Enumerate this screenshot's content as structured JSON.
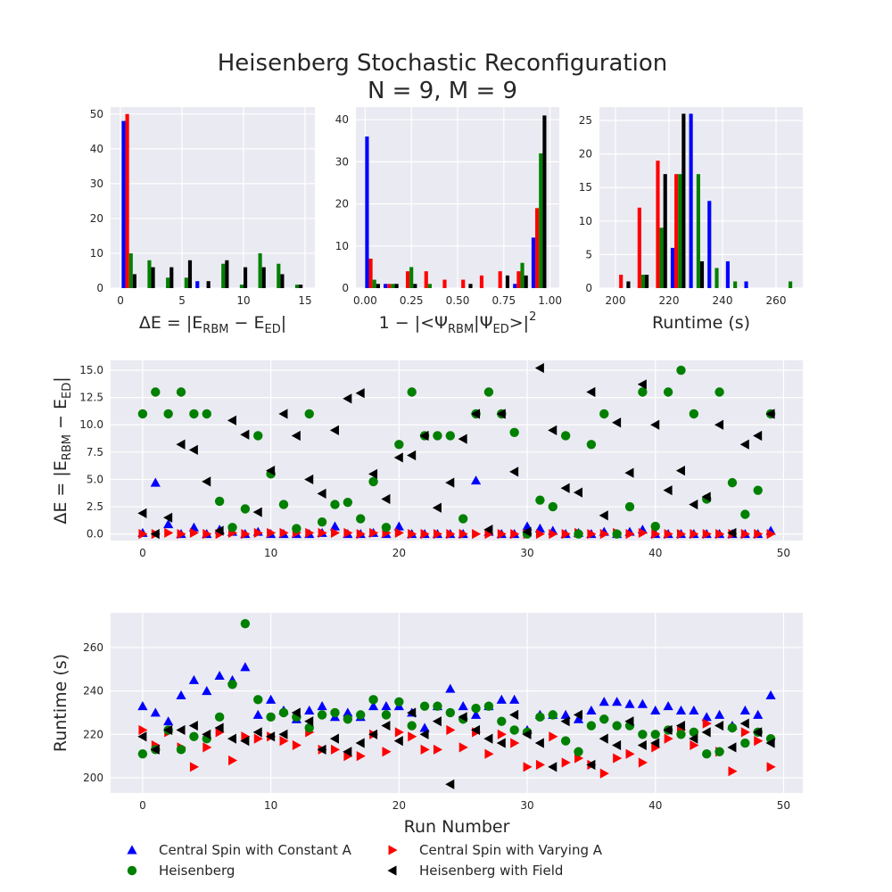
{
  "figure": {
    "title_line1": "Heisenberg Stochastic Reconfiguration",
    "title_line2": "N = 9, M = 9"
  },
  "legend": {
    "entries": [
      {
        "label": "Central Spin with Constant A",
        "color": "#0000ff",
        "marker": "triangle-up"
      },
      {
        "label": "Central Spin with Varying A",
        "color": "#ff0000",
        "marker": "triangle-right"
      },
      {
        "label": "Heisenberg",
        "color": "#008000",
        "marker": "circle"
      },
      {
        "label": "Heisenberg with Field",
        "color": "#000000",
        "marker": "triangle-left"
      }
    ]
  },
  "chart_data": [
    {
      "type": "bar",
      "xlabel": "ΔE = |E_RBM − E_ED|",
      "ylabel": "",
      "xlim": [
        -0.8,
        15.8
      ],
      "ylim": [
        0,
        52
      ],
      "xticks": [
        0,
        5,
        10,
        15
      ],
      "yticks": [
        0,
        10,
        20,
        30,
        40,
        50
      ],
      "bin_start": 0.1,
      "bin_width": 1.5,
      "series": [
        {
          "name": "Central Spin with Constant A",
          "color": "#0000ff",
          "values": [
            48,
            0,
            0,
            0,
            2,
            0,
            0,
            0,
            0,
            0
          ]
        },
        {
          "name": "Central Spin with Varying A",
          "color": "#ff0000",
          "values": [
            50,
            0,
            0,
            0,
            0,
            0,
            0,
            0,
            0,
            0
          ]
        },
        {
          "name": "Heisenberg",
          "color": "#008000",
          "values": [
            10,
            8,
            3,
            3,
            0,
            7,
            1,
            10,
            7,
            1
          ]
        },
        {
          "name": "Heisenberg with Field",
          "color": "#000000",
          "values": [
            4,
            6,
            6,
            8,
            2,
            8,
            6,
            6,
            4,
            1
          ]
        }
      ]
    },
    {
      "type": "bar",
      "xlabel": "1 − |<Ψ_RBM|Ψ_ED>|²",
      "ylabel": "",
      "xlim": [
        -0.05,
        1.05
      ],
      "ylim": [
        0,
        43
      ],
      "xticks": [
        "0.00",
        "0.25",
        "0.50",
        "0.75",
        "1.00"
      ],
      "yticks": [
        0,
        10,
        20,
        30,
        40
      ],
      "bin_start": 0.0,
      "bin_width": 0.1,
      "series": [
        {
          "name": "Central Spin with Constant A",
          "color": "#0000ff",
          "values": [
            36,
            1,
            0,
            0,
            0,
            0,
            0,
            0,
            1,
            12
          ]
        },
        {
          "name": "Central Spin with Varying A",
          "color": "#ff0000",
          "values": [
            7,
            1,
            4,
            4,
            2,
            2,
            3,
            4,
            4,
            19
          ]
        },
        {
          "name": "Heisenberg",
          "color": "#008000",
          "values": [
            2,
            1,
            5,
            1,
            0,
            0,
            0,
            0,
            6,
            32
          ]
        },
        {
          "name": "Heisenberg with Field",
          "color": "#000000",
          "values": [
            1,
            1,
            1,
            0,
            0,
            1,
            0,
            3,
            3,
            41
          ]
        }
      ]
    },
    {
      "type": "bar",
      "xlabel": "Runtime (s)",
      "ylabel": "",
      "xlim": [
        194,
        270
      ],
      "ylim": [
        0,
        27
      ],
      "xticks": [
        200,
        220,
        240,
        260
      ],
      "yticks": [
        0,
        5,
        10,
        15,
        20,
        25
      ],
      "bin_start": 200,
      "bin_width": 6.88,
      "series": [
        {
          "name": "Central Spin with Constant A",
          "color": "#0000ff",
          "values": [
            0,
            0,
            0,
            6,
            26,
            13,
            4,
            1,
            0,
            0
          ]
        },
        {
          "name": "Central Spin with Varying A",
          "color": "#ff0000",
          "values": [
            2,
            12,
            19,
            17,
            0,
            0,
            0,
            0,
            0,
            0
          ]
        },
        {
          "name": "Heisenberg",
          "color": "#008000",
          "values": [
            0,
            2,
            9,
            17,
            17,
            3,
            1,
            0,
            0,
            1
          ]
        },
        {
          "name": "Heisenberg with Field",
          "color": "#000000",
          "values": [
            1,
            2,
            17,
            26,
            4,
            0,
            0,
            0,
            0,
            0
          ]
        }
      ]
    },
    {
      "type": "scatter",
      "xlabel": "",
      "ylabel": "ΔE = |E_RBM − E_ED|",
      "xlim": [
        -2.5,
        51.5
      ],
      "ylim": [
        -0.6,
        15.9
      ],
      "xticks": [
        0,
        10,
        20,
        30,
        40,
        50
      ],
      "yticks": [
        "0.0",
        "2.5",
        "5.0",
        "7.5",
        "10.0",
        "12.5",
        "15.0"
      ],
      "series": [
        {
          "name": "Central Spin with Constant A",
          "color": "#0000ff",
          "marker": "triangle-up",
          "y": [
            0.1,
            4.7,
            0.9,
            0,
            0.6,
            0,
            0.4,
            0.2,
            0,
            0.2,
            0,
            0,
            0,
            0,
            0.1,
            0.7,
            0,
            0,
            0.1,
            0,
            0.7,
            0,
            0,
            0,
            0,
            0,
            4.9,
            0.2,
            0,
            0,
            0.7,
            0.5,
            0.3,
            0,
            0.1,
            0,
            0.2,
            0,
            0.2,
            0.4,
            0,
            0,
            0,
            0,
            0,
            0,
            0,
            0,
            0,
            0.3
          ]
        },
        {
          "name": "Central Spin with Varying A",
          "color": "#ff0000",
          "marker": "triangle-right",
          "y": [
            0,
            0,
            0.1,
            0,
            0.1,
            0,
            0,
            0.1,
            0,
            0.1,
            0.1,
            0.1,
            0.1,
            0.1,
            0.1,
            0.1,
            0.1,
            0,
            0.1,
            0.1,
            0.1,
            0,
            0,
            0,
            0,
            0,
            0,
            0,
            0,
            0,
            0,
            0,
            0,
            0,
            0.1,
            0,
            0,
            0.1,
            0,
            0.1,
            0,
            0,
            0,
            0,
            0,
            0,
            0,
            0,
            0,
            0
          ]
        },
        {
          "name": "Heisenberg",
          "color": "#008000",
          "marker": "circle",
          "y": [
            11,
            13,
            11,
            13,
            11,
            11,
            3,
            0.6,
            2.3,
            9,
            5.5,
            2.7,
            0.5,
            11,
            1.1,
            2.7,
            2.9,
            1.4,
            4.8,
            0.6,
            8.2,
            13,
            9,
            9,
            9,
            1.4,
            11,
            13,
            11,
            9.3,
            0,
            3.1,
            2.5,
            9,
            0,
            8.2,
            11,
            0,
            2.5,
            13,
            0.7,
            13,
            15,
            11,
            3.2,
            13,
            4.7,
            1.8,
            4,
            11
          ]
        },
        {
          "name": "Heisenberg with Field",
          "color": "#000000",
          "marker": "triangle-left",
          "y": [
            1.9,
            0,
            1.5,
            8.2,
            7.7,
            4.8,
            0.3,
            10.4,
            9.1,
            2,
            5.8,
            11,
            9,
            5,
            3.7,
            9.5,
            12.4,
            12.9,
            5.5,
            3.2,
            7,
            7.2,
            9,
            2.4,
            4.7,
            8.7,
            11,
            0.4,
            11,
            5.7,
            0.2,
            15.2,
            9.5,
            4.2,
            3.8,
            13,
            1.7,
            10.2,
            5.6,
            13.7,
            10,
            4,
            5.8,
            2.7,
            3.4,
            10,
            0.1,
            8.2,
            9,
            11
          ]
        }
      ]
    },
    {
      "type": "scatter",
      "xlabel": "Run Number",
      "ylabel": "Runtime (s)",
      "xlim": [
        -2.5,
        51.5
      ],
      "ylim": [
        193,
        276
      ],
      "xticks": [
        0,
        10,
        20,
        30,
        40,
        50
      ],
      "yticks": [
        200,
        220,
        240,
        260
      ],
      "series": [
        {
          "name": "Central Spin with Constant A",
          "color": "#0000ff",
          "marker": "triangle-up",
          "y": [
            233,
            230,
            226,
            238,
            245,
            240,
            247,
            245,
            251,
            229,
            236,
            231,
            227,
            231,
            233,
            228,
            230,
            228,
            233,
            233,
            233,
            230,
            223,
            233,
            241,
            233,
            229,
            233,
            236,
            236,
            222,
            229,
            229,
            229,
            227,
            231,
            235,
            235,
            234,
            234,
            231,
            233,
            231,
            231,
            228,
            229,
            224,
            231,
            229,
            238
          ]
        },
        {
          "name": "Central Spin with Varying A",
          "color": "#ff0000",
          "marker": "triangle-right",
          "y": [
            222,
            215,
            221,
            214,
            205,
            214,
            221,
            208,
            219,
            218,
            219,
            217,
            215,
            221,
            213,
            213,
            210,
            210,
            220,
            212,
            221,
            219,
            213,
            213,
            222,
            214,
            221,
            211,
            220,
            216,
            205,
            206,
            219,
            207,
            209,
            206,
            202,
            209,
            211,
            207,
            214,
            218,
            222,
            215,
            225,
            212,
            203,
            221,
            217,
            205
          ]
        },
        {
          "name": "Heisenberg",
          "color": "#008000",
          "marker": "circle",
          "y": [
            211,
            213,
            222,
            213,
            219,
            218,
            228,
            243,
            271,
            236,
            228,
            230,
            228,
            223,
            229,
            230,
            227,
            229,
            236,
            229,
            235,
            224,
            233,
            233,
            230,
            227,
            232,
            233,
            226,
            222,
            221,
            228,
            229,
            217,
            212,
            224,
            227,
            224,
            224,
            220,
            220,
            222,
            220,
            221,
            211,
            212,
            223,
            216,
            221,
            218
          ]
        },
        {
          "name": "Heisenberg with Field",
          "color": "#000000",
          "marker": "triangle-left",
          "y": [
            219,
            213,
            222,
            222,
            224,
            220,
            223,
            218,
            217,
            221,
            219,
            220,
            230,
            226,
            213,
            218,
            212,
            216,
            220,
            224,
            217,
            230,
            220,
            226,
            197,
            228,
            222,
            218,
            216,
            229,
            220,
            216,
            205,
            226,
            229,
            206,
            218,
            215,
            226,
            215,
            216,
            222,
            224,
            218,
            221,
            224,
            214,
            225,
            221,
            216
          ]
        }
      ]
    }
  ]
}
